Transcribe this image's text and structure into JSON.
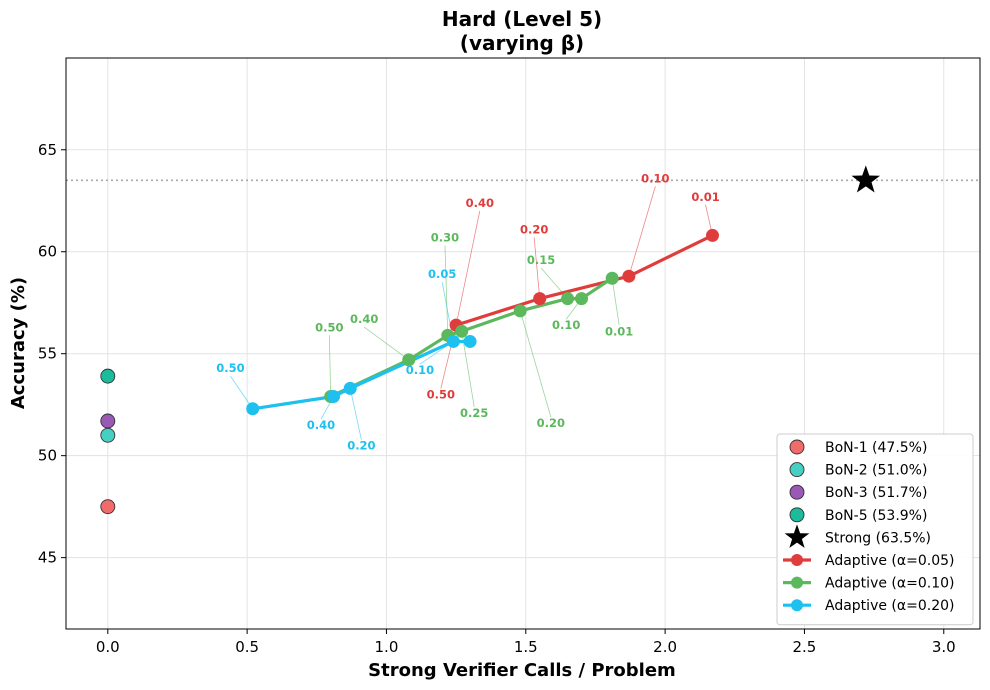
{
  "chart_data": {
    "type": "scatter",
    "title": "Hard (Level 5)",
    "subtitle": "(varying β)",
    "xlabel": "Strong Verifier Calls / Problem",
    "ylabel": "Accuracy (%)",
    "xlim": [
      -0.15,
      3.13
    ],
    "ylim": [
      41.5,
      69.5
    ],
    "xticks": [
      0.0,
      0.5,
      1.0,
      1.5,
      2.0,
      2.5,
      3.0
    ],
    "xtick_labels": [
      "0.0",
      "0.5",
      "1.0",
      "1.5",
      "2.0",
      "2.5",
      "3.0"
    ],
    "yticks": [
      45,
      50,
      55,
      60,
      65
    ],
    "ytick_labels": [
      "45",
      "50",
      "55",
      "60",
      "65"
    ],
    "grid": true,
    "legend_position": "bottom-right",
    "reference_line": {
      "y": 63.5,
      "style": "dotted",
      "color": "#aaaaaa"
    },
    "bon_points": [
      {
        "name": "BoN-1 (47.5%)",
        "x": 0.0,
        "y": 47.5,
        "color": "#f26b6b"
      },
      {
        "name": "BoN-2 (51.0%)",
        "x": 0.0,
        "y": 51.0,
        "color": "#48cfc4"
      },
      {
        "name": "BoN-3 (51.7%)",
        "x": 0.0,
        "y": 51.7,
        "color": "#9b59b6"
      },
      {
        "name": "BoN-5 (53.9%)",
        "x": 0.0,
        "y": 53.9,
        "color": "#1abc9c"
      }
    ],
    "strong_point": {
      "name": "Strong (63.5%)",
      "x": 2.72,
      "y": 63.5,
      "color": "#000000"
    },
    "series": [
      {
        "name": "Adaptive (α=0.05)",
        "color": "#e03c3c",
        "points": [
          {
            "x": 1.25,
            "y": 56.4
          },
          {
            "x": 1.55,
            "y": 57.7
          },
          {
            "x": 1.87,
            "y": 58.8
          },
          {
            "x": 2.17,
            "y": 60.8
          }
        ],
        "annotations": [
          {
            "label": "0.50",
            "x": 1.25,
            "y": 56.4,
            "tx": 1.195,
            "ty": 52.8
          },
          {
            "label": "0.40",
            "x": 1.25,
            "y": 56.4,
            "tx": 1.335,
            "ty": 62.2
          },
          {
            "label": "0.20",
            "x": 1.55,
            "y": 57.7,
            "tx": 1.53,
            "ty": 60.9
          },
          {
            "label": "0.10",
            "x": 1.87,
            "y": 58.8,
            "tx": 1.965,
            "ty": 63.4
          },
          {
            "label": "0.01",
            "x": 2.17,
            "y": 60.8,
            "tx": 2.145,
            "ty": 62.5
          }
        ]
      },
      {
        "name": "Adaptive (α=0.10)",
        "color": "#5cb85c",
        "points": [
          {
            "x": 0.8,
            "y": 52.9
          },
          {
            "x": 1.08,
            "y": 54.7
          },
          {
            "x": 1.22,
            "y": 55.9
          },
          {
            "x": 1.27,
            "y": 56.1
          },
          {
            "x": 1.48,
            "y": 57.1
          },
          {
            "x": 1.65,
            "y": 57.7
          },
          {
            "x": 1.7,
            "y": 57.7
          },
          {
            "x": 1.81,
            "y": 58.7
          }
        ],
        "annotations": [
          {
            "label": "0.50",
            "x": 0.8,
            "y": 52.9,
            "tx": 0.795,
            "ty": 56.1
          },
          {
            "label": "0.40",
            "x": 1.08,
            "y": 54.7,
            "tx": 0.92,
            "ty": 56.5
          },
          {
            "label": "0.30",
            "x": 1.22,
            "y": 55.9,
            "tx": 1.21,
            "ty": 60.5
          },
          {
            "label": "0.25",
            "x": 1.27,
            "y": 56.1,
            "tx": 1.315,
            "ty": 51.9
          },
          {
            "label": "0.20",
            "x": 1.48,
            "y": 57.1,
            "tx": 1.59,
            "ty": 51.4
          },
          {
            "label": "0.15",
            "x": 1.65,
            "y": 57.7,
            "tx": 1.555,
            "ty": 59.4
          },
          {
            "label": "0.10",
            "x": 1.7,
            "y": 57.7,
            "tx": 1.645,
            "ty": 56.2
          },
          {
            "label": "0.01",
            "x": 1.81,
            "y": 58.7,
            "tx": 1.835,
            "ty": 55.9
          }
        ]
      },
      {
        "name": "Adaptive (α=0.20)",
        "color": "#1ec0f0",
        "points": [
          {
            "x": 0.52,
            "y": 52.3
          },
          {
            "x": 0.81,
            "y": 52.9
          },
          {
            "x": 0.87,
            "y": 53.3
          },
          {
            "x": 1.24,
            "y": 55.6
          },
          {
            "x": 1.3,
            "y": 55.6
          }
        ],
        "annotations": [
          {
            "label": "0.50",
            "x": 0.52,
            "y": 52.3,
            "tx": 0.44,
            "ty": 54.1
          },
          {
            "label": "0.40",
            "x": 0.81,
            "y": 52.9,
            "tx": 0.765,
            "ty": 51.3
          },
          {
            "label": "0.20",
            "x": 0.87,
            "y": 53.3,
            "tx": 0.91,
            "ty": 50.3
          },
          {
            "label": "0.10",
            "x": 1.24,
            "y": 55.6,
            "tx": 1.12,
            "ty": 54.0
          },
          {
            "label": "0.05",
            "x": 1.24,
            "y": 55.6,
            "tx": 1.2,
            "ty": 58.7
          }
        ]
      }
    ]
  }
}
